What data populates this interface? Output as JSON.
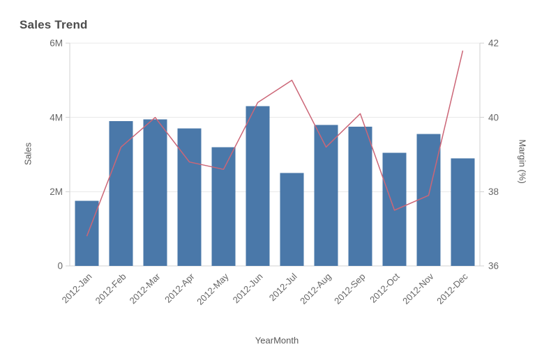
{
  "chart": {
    "title": "Sales Trend",
    "x_axis": {
      "title": "YearMonth"
    },
    "y_left": {
      "title": "Sales",
      "ticks": [
        {
          "label": "0",
          "value": 0
        },
        {
          "label": "2M",
          "value": 2000000
        },
        {
          "label": "4M",
          "value": 4000000
        },
        {
          "label": "6M",
          "value": 6000000
        }
      ]
    },
    "y_right": {
      "title": "Margin (%)",
      "ticks": [
        {
          "label": "36",
          "value": 36
        },
        {
          "label": "38",
          "value": 38
        },
        {
          "label": "40",
          "value": 40
        },
        {
          "label": "42",
          "value": 42
        }
      ]
    }
  },
  "chart_data": {
    "type": "combo",
    "title": "Sales Trend",
    "xlabel": "YearMonth",
    "ylabel_left": "Sales",
    "ylabel_right": "Margin (%)",
    "categories": [
      "2012-Jan",
      "2012-Feb",
      "2012-Mar",
      "2012-Apr",
      "2012-May",
      "2012-Jun",
      "2012-Jul",
      "2012-Aug",
      "2012-Sep",
      "2012-Oct",
      "2012-Nov",
      "2012-Dec"
    ],
    "series": [
      {
        "name": "Sales",
        "type": "bar",
        "axis": "left",
        "color": "#4a78a9",
        "values": [
          1750000,
          3900000,
          3950000,
          3700000,
          3200000,
          4300000,
          2500000,
          3800000,
          3750000,
          3050000,
          3550000,
          2900000
        ]
      },
      {
        "name": "Margin (%)",
        "type": "line",
        "axis": "right",
        "color": "#cc6677",
        "values": [
          36.8,
          39.2,
          40.0,
          38.8,
          38.6,
          40.4,
          41.0,
          39.2,
          40.1,
          37.5,
          37.9,
          41.8
        ]
      }
    ],
    "y_left_range": [
      0,
      6000000
    ],
    "y_right_range": [
      36,
      42
    ],
    "grid": true,
    "legend": "none"
  },
  "colors": {
    "bar": "#4a78a9",
    "line": "#cc6677",
    "grid": "#e9e9e9",
    "axis_line": "#d2d2d2",
    "tick_text": "#666666",
    "title_text": "#4c4c4c",
    "axis_title_text": "#595959"
  }
}
